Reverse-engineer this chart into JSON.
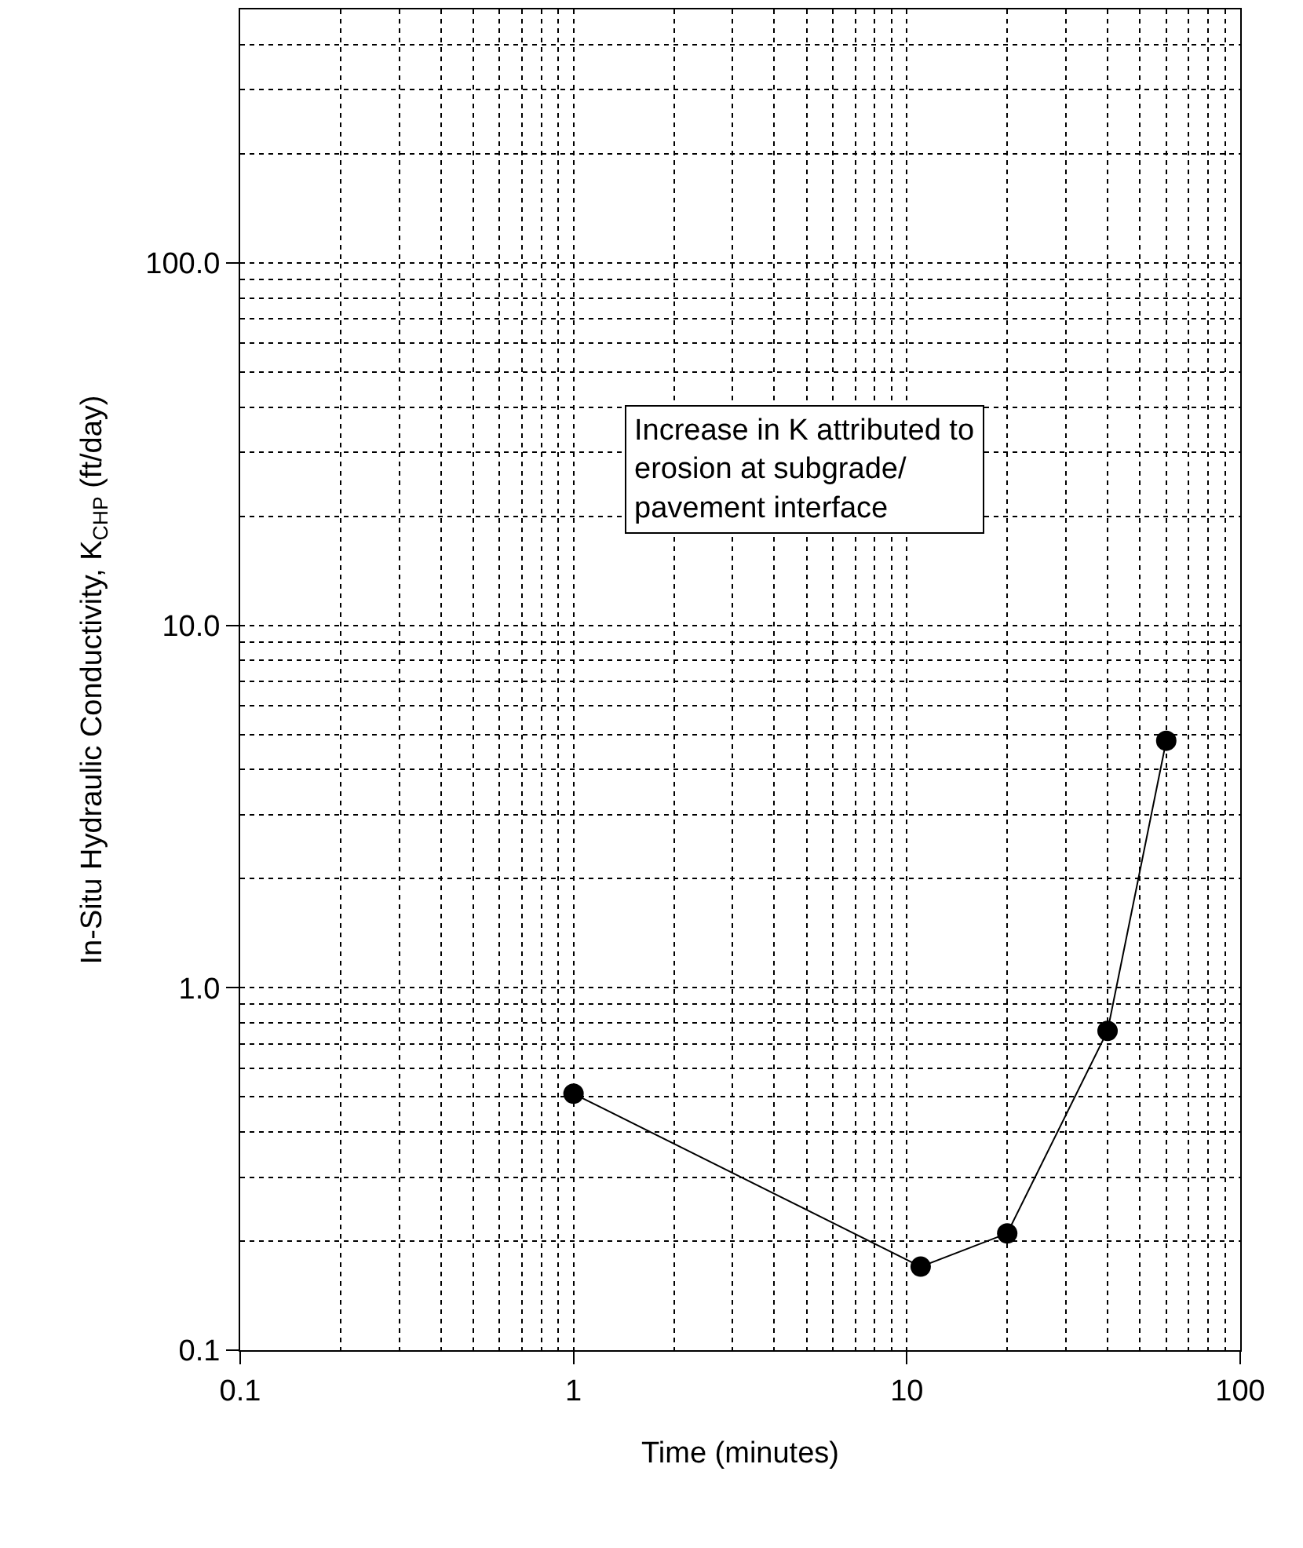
{
  "chart_data": {
    "type": "line",
    "xlabel": "Time (minutes)",
    "ylabel": "In-Situ Hydraulic Conductivity, K$_{CHP}$ (ft/day)",
    "x": [
      1,
      11,
      20,
      40,
      60
    ],
    "series": [
      {
        "color": "#000000",
        "values": [
          0.51,
          0.17,
          0.21,
          0.76,
          4.8
        ]
      }
    ],
    "log": "xy",
    "xlim": [
      0.1,
      100
    ],
    "ylim": [
      0.1,
      500
    ],
    "xticks": [
      0.1,
      1,
      10,
      100
    ],
    "yticks": [
      {
        "value": 0.1,
        "label": "0.1"
      },
      {
        "value": 1,
        "label": "1.0"
      },
      {
        "value": 10,
        "label": "10.0"
      },
      {
        "value": 100,
        "label": "100.0"
      }
    ],
    "grid": true,
    "marker": "circle",
    "line_style": "solid",
    "annotations": [
      "Increase in K attributed to\nerosion at subgrade/\npavement interface"
    ]
  }
}
